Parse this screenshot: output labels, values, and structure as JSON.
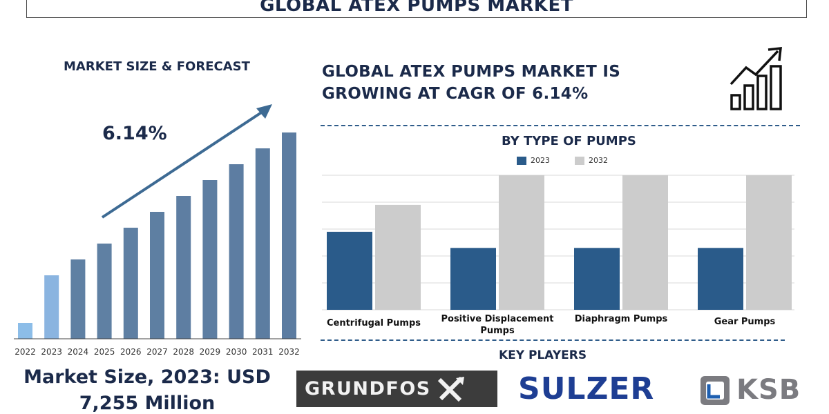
{
  "header": {
    "title": "GLOBAL ATEX PUMPS MARKET"
  },
  "left": {
    "title": "MARKET SIZE & FORECAST",
    "cagr_label": "6.14%",
    "market_size_line1": "Market Size, 2023: USD",
    "market_size_line2": "7,255 Million"
  },
  "right": {
    "headline_line1": "GLOBAL ATEX PUMPS MARKET IS",
    "headline_line2": "GROWING AT CAGR OF 6.14%",
    "segment_title": "BY TYPE OF PUMPS",
    "key_players_title": "KEY PLAYERS"
  },
  "logos": {
    "grundfos": "GRUNDFOS",
    "sulzer": "SULZER",
    "ksb": "KSB"
  },
  "icons": {
    "growth": "bar-growth-arrow-icon",
    "grundfos_mark": "grundfos-x-icon",
    "ksb_mark": "ksb-logo-icon"
  },
  "colors": {
    "navy": "#1b2a4a",
    "bar_steel": "#5f80a3",
    "bar_light": "#8ab4e0",
    "bar_pale": "#8cbde8",
    "series_2023": "#2a5b8a",
    "series_2032": "#cccccc",
    "grid": "#d8d8d8"
  },
  "chart_data": [
    {
      "type": "bar",
      "categories": [
        "2022",
        "2023",
        "2024",
        "2025",
        "2026",
        "2027",
        "2028",
        "2029",
        "2030",
        "2031",
        "2032"
      ],
      "values": [
        1,
        4,
        5,
        6,
        7,
        8,
        9,
        10,
        11,
        12,
        13
      ],
      "highlight": [
        "2022",
        "2023"
      ],
      "annotation": "6.14%",
      "grid": false
    },
    {
      "type": "bar",
      "title": "BY TYPE OF PUMPS",
      "categories": [
        "Centrifugal Pumps",
        "Positive Displacement Pumps",
        "Diaphragm Pumps",
        "Gear Pumps"
      ],
      "series": [
        {
          "name": "2023",
          "values": [
            2.9,
            2.3,
            2.3,
            2.3
          ]
        },
        {
          "name": "2032",
          "values": [
            3.9,
            5.0,
            5.0,
            5.0
          ]
        }
      ],
      "ylim": [
        0,
        5
      ],
      "grid": true,
      "legend": "top-center"
    }
  ]
}
